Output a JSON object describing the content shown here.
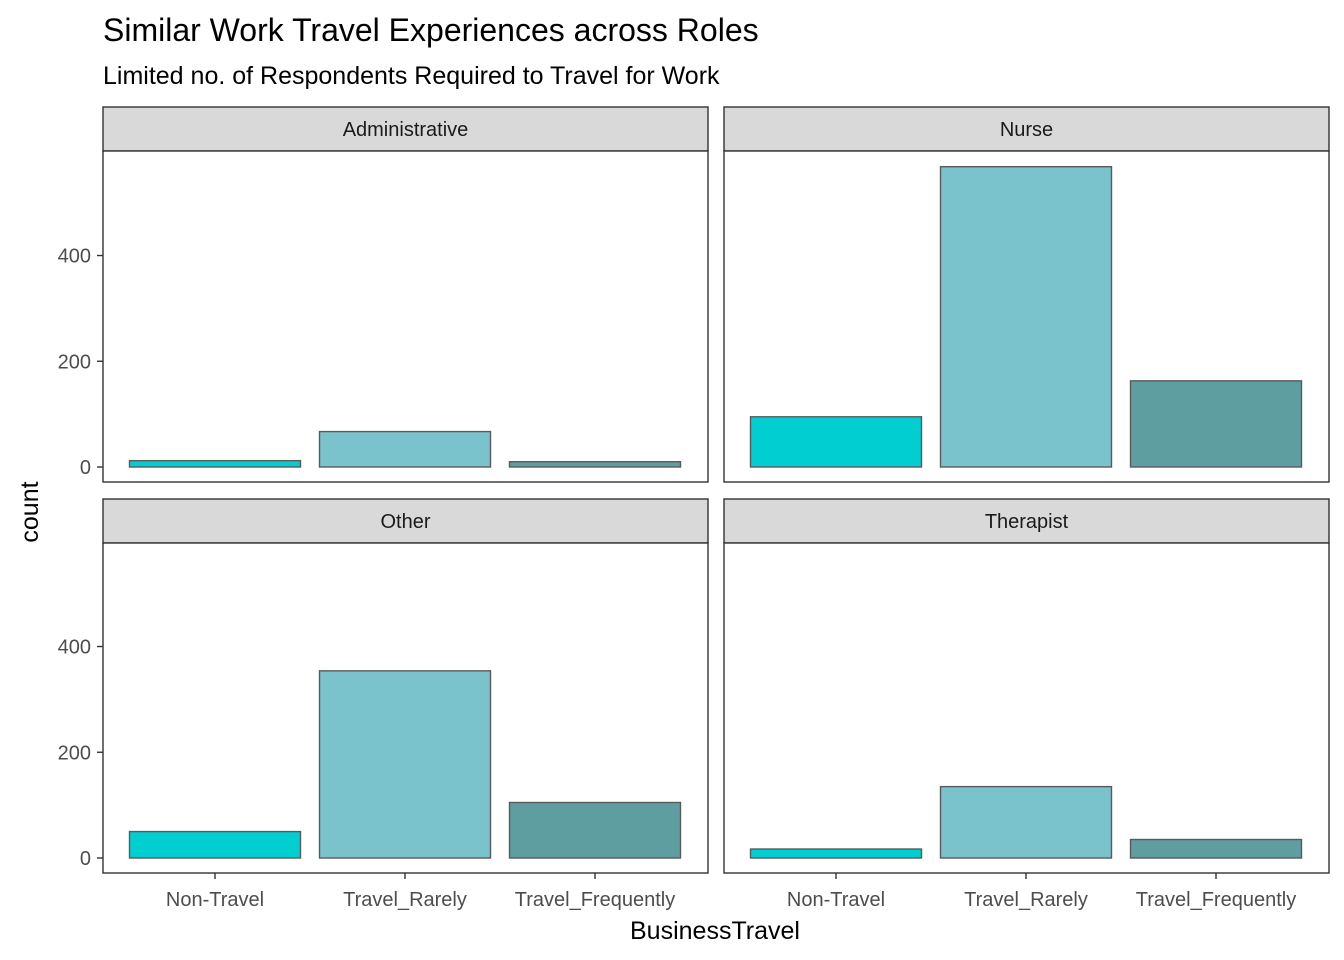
{
  "chart_data": {
    "type": "bar",
    "title": "Similar Work Travel Experiences across Roles",
    "subtitle": "Limited no. of Respondents Required to Travel for Work",
    "xlabel": "BusinessTravel",
    "ylabel": "count",
    "categories": [
      "Non-Travel",
      "Travel_Rarely",
      "Travel_Frequently"
    ],
    "yticks": [
      0,
      200,
      400
    ],
    "ylim": [
      0,
      600
    ],
    "grid": false,
    "legend": "none",
    "facet_layout": "2x2",
    "colors": {
      "Non-Travel": "#00CED1",
      "Travel_Rarely": "#7AC3CC",
      "Travel_Frequently": "#5F9EA0",
      "bar_outline": "#5a5a5a",
      "strip_fill": "#d9d9d9",
      "panel_border": "#333333"
    },
    "facets": [
      {
        "name": "Administrative",
        "values": [
          12,
          67,
          10
        ]
      },
      {
        "name": "Nurse",
        "values": [
          95,
          568,
          163
        ]
      },
      {
        "name": "Other",
        "values": [
          50,
          354,
          105
        ]
      },
      {
        "name": "Therapist",
        "values": [
          17,
          135,
          35
        ]
      }
    ]
  }
}
